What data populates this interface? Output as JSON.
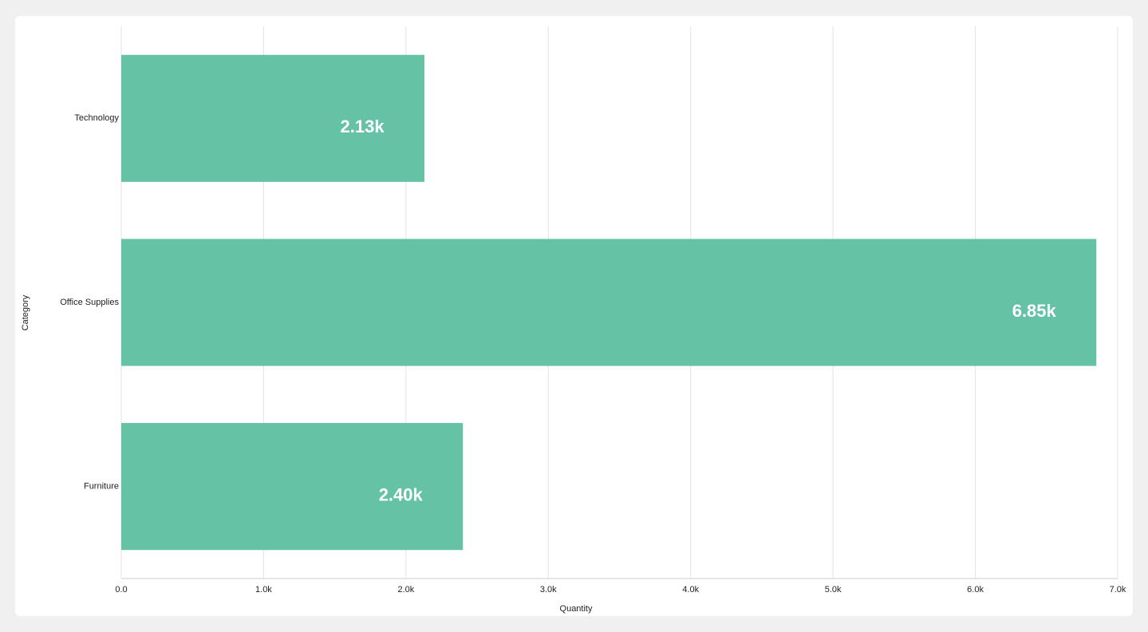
{
  "chart_data": {
    "type": "bar",
    "orientation": "horizontal",
    "categories": [
      "Technology",
      "Office Supplies",
      "Furniture"
    ],
    "values": [
      2130,
      6850,
      2400
    ],
    "value_labels": [
      "2.13k",
      "6.85k",
      "2.40k"
    ],
    "color": "#66c2a5",
    "xlabel": "Quantity",
    "ylabel": "Category",
    "xlim": [
      0,
      7000
    ],
    "xticks": [
      {
        "value": 0,
        "label": "0.0"
      },
      {
        "value": 1000,
        "label": "1.0k"
      },
      {
        "value": 2000,
        "label": "2.0k"
      },
      {
        "value": 3000,
        "label": "3.0k"
      },
      {
        "value": 4000,
        "label": "4.0k"
      },
      {
        "value": 5000,
        "label": "5.0k"
      },
      {
        "value": 6000,
        "label": "6.0k"
      },
      {
        "value": 7000,
        "label": "7.0k"
      }
    ],
    "grid": true
  }
}
